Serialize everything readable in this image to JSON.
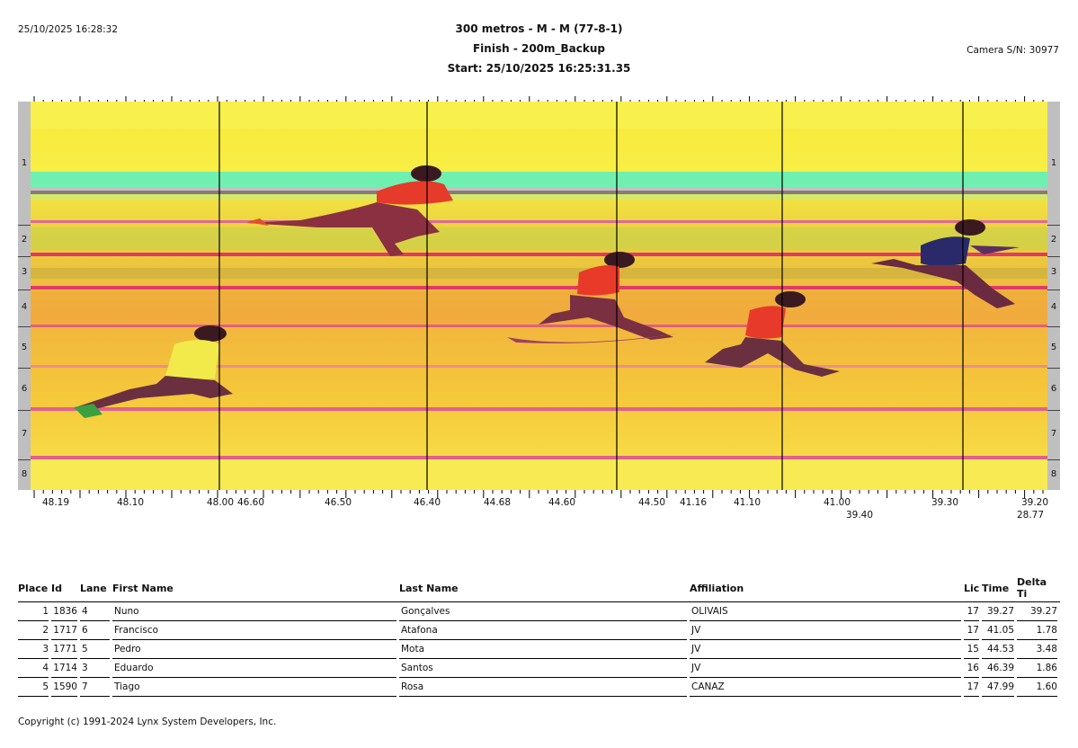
{
  "header": {
    "datetime": "25/10/2025 16:28:32",
    "title": "300 metros  - M - M (77-8-1)",
    "subtitle": "Finish - 200m_Backup",
    "start": "Start: 25/10/2025 16:25:31.35",
    "camera": "Camera S/N: 30977"
  },
  "photo": {
    "lane_numbers": [
      "1",
      "2",
      "3",
      "4",
      "5",
      "6",
      "7",
      "8"
    ],
    "time_labels": [
      {
        "text": "48.19",
        "row": 1
      },
      {
        "text": "48.10",
        "row": 1
      },
      {
        "text": "48.00",
        "row": 1
      },
      {
        "text": "46.60",
        "row": 1
      },
      {
        "text": "46.50",
        "row": 1
      },
      {
        "text": "46.40",
        "row": 1
      },
      {
        "text": "44.68",
        "row": 1
      },
      {
        "text": "44.60",
        "row": 1
      },
      {
        "text": "44.50",
        "row": 1
      },
      {
        "text": "41.16",
        "row": 1
      },
      {
        "text": "41.10",
        "row": 1
      },
      {
        "text": "41.00",
        "row": 1
      },
      {
        "text": "39.40",
        "row": 2
      },
      {
        "text": "39.30",
        "row": 1
      },
      {
        "text": "39.20",
        "row": 1
      },
      {
        "text": "28.77",
        "row": 2
      }
    ]
  },
  "results": {
    "columns": [
      "Place",
      "Id",
      "Lane",
      "First Name",
      "Last Name",
      "Affiliation",
      "Lic",
      "Time",
      "Delta Ti"
    ],
    "rows": [
      [
        "1",
        "1836",
        "4",
        "Nuno",
        "Gonçalves",
        "OLIVAIS",
        "17",
        "39.27",
        "39.27"
      ],
      [
        "2",
        "1717",
        "6",
        "Francisco",
        "Atafona",
        "JV",
        "17",
        "41.05",
        "1.78"
      ],
      [
        "3",
        "1771",
        "5",
        "Pedro",
        "Mota",
        "JV",
        "15",
        "44.53",
        "3.48"
      ],
      [
        "4",
        "1714",
        "3",
        "Eduardo",
        "Santos",
        "JV",
        "16",
        "46.39",
        "1.86"
      ],
      [
        "5",
        "1590",
        "7",
        "Tiago",
        "Rosa",
        "CANAZ",
        "17",
        "47.99",
        "1.60"
      ]
    ]
  },
  "footer": {
    "copyright": "Copyright (c) 1991-2024 Lynx System Developers, Inc."
  }
}
